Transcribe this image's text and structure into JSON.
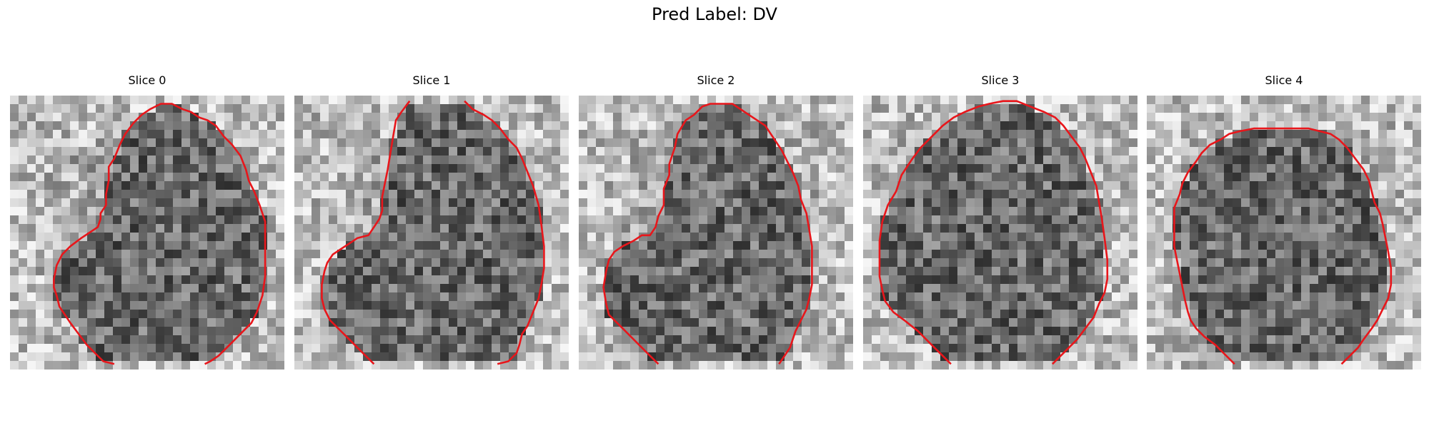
{
  "figure": {
    "title": "Pred Label: DV"
  },
  "colors": {
    "contour": "#e8161b",
    "background": "#ffffff"
  },
  "panels": [
    {
      "label": "Slice 0",
      "contour": [
        [
          0.38,
          0.98
        ],
        [
          0.34,
          0.97
        ],
        [
          0.31,
          0.94
        ],
        [
          0.28,
          0.91
        ],
        [
          0.25,
          0.87
        ],
        [
          0.22,
          0.83
        ],
        [
          0.2,
          0.8
        ],
        [
          0.18,
          0.77
        ],
        [
          0.17,
          0.73
        ],
        [
          0.16,
          0.7
        ],
        [
          0.16,
          0.67
        ],
        [
          0.17,
          0.62
        ],
        [
          0.19,
          0.58
        ],
        [
          0.22,
          0.55
        ],
        [
          0.26,
          0.52
        ],
        [
          0.29,
          0.5
        ],
        [
          0.32,
          0.48
        ],
        [
          0.33,
          0.45
        ],
        [
          0.33,
          0.43
        ],
        [
          0.35,
          0.4
        ],
        [
          0.35,
          0.36
        ],
        [
          0.36,
          0.31
        ],
        [
          0.36,
          0.26
        ],
        [
          0.38,
          0.23
        ],
        [
          0.4,
          0.18
        ],
        [
          0.42,
          0.14
        ],
        [
          0.45,
          0.1
        ],
        [
          0.48,
          0.07
        ],
        [
          0.51,
          0.05
        ],
        [
          0.55,
          0.03
        ],
        [
          0.59,
          0.03
        ],
        [
          0.63,
          0.05
        ],
        [
          0.66,
          0.06
        ],
        [
          0.69,
          0.08
        ],
        [
          0.72,
          0.09
        ],
        [
          0.75,
          0.11
        ],
        [
          0.78,
          0.15
        ],
        [
          0.81,
          0.18
        ],
        [
          0.84,
          0.22
        ],
        [
          0.86,
          0.27
        ],
        [
          0.87,
          0.31
        ],
        [
          0.89,
          0.35
        ],
        [
          0.91,
          0.4
        ],
        [
          0.93,
          0.46
        ],
        [
          0.93,
          0.52
        ],
        [
          0.93,
          0.58
        ],
        [
          0.93,
          0.66
        ],
        [
          0.92,
          0.73
        ],
        [
          0.9,
          0.79
        ],
        [
          0.88,
          0.83
        ],
        [
          0.85,
          0.86
        ],
        [
          0.82,
          0.89
        ],
        [
          0.79,
          0.92
        ],
        [
          0.76,
          0.95
        ],
        [
          0.73,
          0.97
        ],
        [
          0.71,
          0.98
        ]
      ]
    },
    {
      "label": "Slice 1",
      "contour": [
        [
          0.29,
          0.98
        ],
        [
          0.26,
          0.95
        ],
        [
          0.23,
          0.92
        ],
        [
          0.19,
          0.88
        ],
        [
          0.16,
          0.85
        ],
        [
          0.13,
          0.82
        ],
        [
          0.11,
          0.78
        ],
        [
          0.1,
          0.74
        ],
        [
          0.1,
          0.69
        ],
        [
          0.11,
          0.64
        ],
        [
          0.12,
          0.61
        ],
        [
          0.14,
          0.58
        ],
        [
          0.17,
          0.56
        ],
        [
          0.2,
          0.54
        ],
        [
          0.23,
          0.52
        ],
        [
          0.27,
          0.51
        ],
        [
          0.29,
          0.48
        ],
        [
          0.31,
          0.45
        ],
        [
          0.32,
          0.42
        ],
        [
          0.32,
          0.37
        ],
        [
          0.33,
          0.32
        ],
        [
          0.34,
          0.27
        ],
        [
          0.35,
          0.21
        ],
        [
          0.36,
          0.15
        ],
        [
          0.37,
          0.09
        ],
        [
          0.39,
          0.06
        ],
        [
          0.42,
          0.02
        ],
        null,
        [
          0.62,
          0.02
        ],
        [
          0.65,
          0.05
        ],
        [
          0.69,
          0.07
        ],
        [
          0.72,
          0.09
        ],
        [
          0.75,
          0.12
        ],
        [
          0.78,
          0.16
        ],
        [
          0.81,
          0.19
        ],
        [
          0.83,
          0.23
        ],
        [
          0.85,
          0.28
        ],
        [
          0.87,
          0.33
        ],
        [
          0.89,
          0.4
        ],
        [
          0.9,
          0.47
        ],
        [
          0.91,
          0.55
        ],
        [
          0.91,
          0.63
        ],
        [
          0.9,
          0.69
        ],
        [
          0.89,
          0.74
        ],
        [
          0.87,
          0.79
        ],
        [
          0.85,
          0.84
        ],
        [
          0.83,
          0.87
        ],
        [
          0.82,
          0.91
        ],
        [
          0.81,
          0.94
        ],
        [
          0.78,
          0.97
        ],
        [
          0.74,
          0.98
        ]
      ]
    },
    {
      "label": "Slice 2",
      "contour": [
        [
          0.29,
          0.98
        ],
        [
          0.26,
          0.95
        ],
        [
          0.23,
          0.92
        ],
        [
          0.2,
          0.89
        ],
        [
          0.17,
          0.86
        ],
        [
          0.14,
          0.83
        ],
        [
          0.11,
          0.8
        ],
        [
          0.1,
          0.76
        ],
        [
          0.09,
          0.7
        ],
        [
          0.1,
          0.64
        ],
        [
          0.11,
          0.6
        ],
        [
          0.13,
          0.57
        ],
        [
          0.16,
          0.55
        ],
        [
          0.2,
          0.53
        ],
        [
          0.23,
          0.51
        ],
        [
          0.26,
          0.51
        ],
        [
          0.28,
          0.48
        ],
        [
          0.29,
          0.44
        ],
        [
          0.31,
          0.4
        ],
        [
          0.31,
          0.34
        ],
        [
          0.33,
          0.29
        ],
        [
          0.33,
          0.25
        ],
        [
          0.35,
          0.19
        ],
        [
          0.36,
          0.14
        ],
        [
          0.39,
          0.09
        ],
        [
          0.42,
          0.07
        ],
        [
          0.45,
          0.04
        ],
        [
          0.48,
          0.03
        ],
        [
          0.52,
          0.03
        ],
        [
          0.56,
          0.03
        ],
        [
          0.59,
          0.05
        ],
        [
          0.62,
          0.07
        ],
        [
          0.65,
          0.09
        ],
        [
          0.68,
          0.11
        ],
        [
          0.7,
          0.14
        ],
        [
          0.72,
          0.17
        ],
        [
          0.74,
          0.2
        ],
        [
          0.76,
          0.24
        ],
        [
          0.78,
          0.28
        ],
        [
          0.8,
          0.33
        ],
        [
          0.81,
          0.38
        ],
        [
          0.83,
          0.43
        ],
        [
          0.84,
          0.49
        ],
        [
          0.85,
          0.55
        ],
        [
          0.85,
          0.63
        ],
        [
          0.85,
          0.69
        ],
        [
          0.84,
          0.74
        ],
        [
          0.83,
          0.78
        ],
        [
          0.81,
          0.82
        ],
        [
          0.79,
          0.86
        ],
        [
          0.78,
          0.89
        ],
        [
          0.77,
          0.92
        ],
        [
          0.75,
          0.95
        ],
        [
          0.73,
          0.98
        ]
      ]
    },
    {
      "label": "Slice 3",
      "contour": [
        [
          0.32,
          0.98
        ],
        [
          0.29,
          0.95
        ],
        [
          0.26,
          0.92
        ],
        [
          0.23,
          0.89
        ],
        [
          0.2,
          0.86
        ],
        [
          0.15,
          0.82
        ],
        [
          0.11,
          0.79
        ],
        [
          0.08,
          0.75
        ],
        [
          0.07,
          0.71
        ],
        [
          0.06,
          0.66
        ],
        [
          0.06,
          0.6
        ],
        [
          0.06,
          0.53
        ],
        [
          0.07,
          0.46
        ],
        [
          0.09,
          0.4
        ],
        [
          0.12,
          0.35
        ],
        [
          0.14,
          0.29
        ],
        [
          0.18,
          0.23
        ],
        [
          0.21,
          0.19
        ],
        [
          0.25,
          0.15
        ],
        [
          0.29,
          0.11
        ],
        [
          0.33,
          0.08
        ],
        [
          0.37,
          0.06
        ],
        [
          0.42,
          0.04
        ],
        [
          0.46,
          0.03
        ],
        [
          0.51,
          0.02
        ],
        [
          0.56,
          0.02
        ],
        [
          0.61,
          0.04
        ],
        [
          0.66,
          0.06
        ],
        [
          0.7,
          0.08
        ],
        [
          0.73,
          0.11
        ],
        [
          0.76,
          0.15
        ],
        [
          0.79,
          0.19
        ],
        [
          0.81,
          0.23
        ],
        [
          0.83,
          0.28
        ],
        [
          0.85,
          0.33
        ],
        [
          0.86,
          0.39
        ],
        [
          0.87,
          0.45
        ],
        [
          0.88,
          0.52
        ],
        [
          0.89,
          0.6
        ],
        [
          0.89,
          0.67
        ],
        [
          0.88,
          0.72
        ],
        [
          0.86,
          0.76
        ],
        [
          0.84,
          0.81
        ],
        [
          0.81,
          0.85
        ],
        [
          0.78,
          0.89
        ],
        [
          0.75,
          0.92
        ],
        [
          0.72,
          0.95
        ],
        [
          0.69,
          0.98
        ]
      ]
    },
    {
      "label": "Slice 4",
      "contour": [
        [
          0.32,
          0.98
        ],
        [
          0.28,
          0.94
        ],
        [
          0.25,
          0.91
        ],
        [
          0.21,
          0.88
        ],
        [
          0.18,
          0.85
        ],
        [
          0.16,
          0.82
        ],
        [
          0.15,
          0.79
        ],
        [
          0.14,
          0.75
        ],
        [
          0.13,
          0.7
        ],
        [
          0.12,
          0.65
        ],
        [
          0.11,
          0.6
        ],
        [
          0.1,
          0.55
        ],
        [
          0.1,
          0.48
        ],
        [
          0.1,
          0.41
        ],
        [
          0.12,
          0.36
        ],
        [
          0.13,
          0.32
        ],
        [
          0.15,
          0.28
        ],
        [
          0.18,
          0.24
        ],
        [
          0.2,
          0.21
        ],
        [
          0.23,
          0.18
        ],
        [
          0.27,
          0.16
        ],
        [
          0.3,
          0.14
        ],
        [
          0.34,
          0.13
        ],
        [
          0.39,
          0.12
        ],
        [
          0.45,
          0.12
        ],
        [
          0.52,
          0.12
        ],
        [
          0.59,
          0.12
        ],
        [
          0.63,
          0.13
        ],
        [
          0.67,
          0.14
        ],
        [
          0.7,
          0.16
        ],
        [
          0.73,
          0.19
        ],
        [
          0.76,
          0.23
        ],
        [
          0.79,
          0.27
        ],
        [
          0.81,
          0.31
        ],
        [
          0.82,
          0.35
        ],
        [
          0.83,
          0.39
        ],
        [
          0.85,
          0.43
        ],
        [
          0.86,
          0.47
        ],
        [
          0.87,
          0.52
        ],
        [
          0.88,
          0.57
        ],
        [
          0.89,
          0.63
        ],
        [
          0.89,
          0.69
        ],
        [
          0.88,
          0.74
        ],
        [
          0.86,
          0.78
        ],
        [
          0.84,
          0.82
        ],
        [
          0.82,
          0.85
        ],
        [
          0.79,
          0.89
        ],
        [
          0.77,
          0.92
        ],
        [
          0.74,
          0.95
        ],
        [
          0.71,
          0.98
        ]
      ]
    }
  ]
}
